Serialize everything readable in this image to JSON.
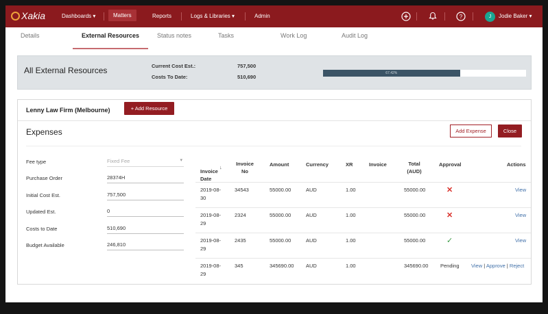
{
  "nav": {
    "logo": "Xakia",
    "items": [
      {
        "label": "Dashboards ▾"
      },
      {
        "label": "Matters"
      },
      {
        "label": "Reports"
      },
      {
        "label": "Logs & Libraries ▾"
      },
      {
        "label": "Admin"
      }
    ],
    "user": {
      "initial": "J",
      "name": "Jodie Baker ▾"
    },
    "icons": [
      "plus-circle-icon",
      "bell-icon",
      "help-icon"
    ]
  },
  "tabs": [
    {
      "label": "Details"
    },
    {
      "label": "External Resources",
      "active": true
    },
    {
      "label": "Status notes"
    },
    {
      "label": "Tasks"
    },
    {
      "label": "Work Log"
    },
    {
      "label": "Audit Log"
    }
  ],
  "summary": {
    "title": "All External Resources",
    "current_cost_label": "Current Cost Est.:",
    "current_cost_value": "757,500",
    "costs_to_date_label": "Costs To Date:",
    "costs_to_date_value": "510,690",
    "progress_label": "67.42%",
    "progress_percent": 67.42
  },
  "firm": {
    "name": "Lenny Law Firm (Melbourne)",
    "add_resource_label": "+ Add Resource"
  },
  "expenses": {
    "title": "Expenses",
    "add_expense_label": "Add Expense",
    "close_label": "Close",
    "form": [
      {
        "label": "Fee type",
        "value": "Fixed Fee",
        "select": true
      },
      {
        "label": "Purchase Order",
        "value": "28374H"
      },
      {
        "label": "Initial Cost Est.",
        "value": "757,500"
      },
      {
        "label": "Updated Est.",
        "value": "0"
      },
      {
        "label": "Costs to Date",
        "value": "510,690"
      },
      {
        "label": "Budget Available",
        "value": "246,810"
      }
    ],
    "columns": {
      "invoice_date": "Invoice\nDate",
      "sort_icon": "↓",
      "invoice_no": "Invoice\nNo",
      "amount": "Amount",
      "currency": "Currency",
      "xr": "XR",
      "invoice": "Invoice",
      "total": "Total\n(AUD)",
      "approval": "Approval",
      "actions": "Actions"
    },
    "rows": [
      {
        "date": "2019-08-\n30",
        "no": "34543",
        "amount": "55000.00",
        "currency": "AUD",
        "xr": "1.00",
        "total": "55000.00",
        "approval": "rejected",
        "approval_icon": "x-icon",
        "action": "View"
      },
      {
        "date": "2019-08-\n29",
        "no": "2324",
        "amount": "55000.00",
        "currency": "AUD",
        "xr": "1.00",
        "total": "55000.00",
        "approval": "rejected",
        "approval_icon": "x-icon",
        "action": "View"
      },
      {
        "date": "2019-08-\n29",
        "no": "2435",
        "amount": "55000.00",
        "currency": "AUD",
        "xr": "1.00",
        "total": "55000.00",
        "approval": "approved",
        "approval_icon": "check-icon",
        "action": "View"
      },
      {
        "date": "2019-08-\n29",
        "no": "345",
        "amount": "345690.00",
        "currency": "AUD",
        "xr": "1.00",
        "total": "345690.00",
        "approval": "Pending",
        "approval_icon": "",
        "actions": [
          "View",
          "Approve",
          "Reject"
        ],
        "action_sep": "|"
      }
    ]
  },
  "colors": {
    "nav_bg": "#8b1a1e",
    "accent": "#931d22",
    "progress_fill": "#3b5466",
    "link": "#3f6fa8",
    "reject": "#d9302a",
    "approve": "#3a9a44"
  }
}
